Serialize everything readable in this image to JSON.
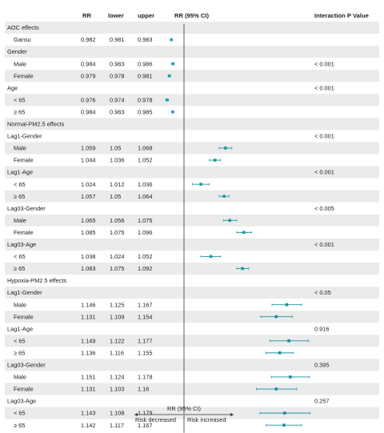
{
  "chart_data": {
    "type": "forest",
    "headers": {
      "rr": "RR",
      "lower": "lower",
      "upper": "upper",
      "ci": "RR (95% CI)",
      "pvalue": "Interaction P Value"
    },
    "xlabel": "RR (95% CI)",
    "xlim": [
      0.98,
      1.2
    ],
    "ticks": [
      {
        "value": 1,
        "label": "1"
      },
      {
        "value": 1.05,
        "label": "1.05"
      },
      {
        "value": 1.1,
        "label": "1.1"
      },
      {
        "value": 1.15,
        "label": "1.15"
      }
    ],
    "reference_line": 1,
    "direction_labels": {
      "left": "Risk decreased",
      "right": "Risk increased"
    },
    "colors": {
      "AOC": "#1aa3b3",
      "Normal": "#1f97a6",
      "Hypoxia": "#1a8fa0",
      "grid_band": "#ebebeb"
    },
    "rows": [
      {
        "type": "section",
        "label": "AOC effects",
        "group": "AOC"
      },
      {
        "type": "data",
        "label": "Gansu",
        "rr": "0.982",
        "lower": "0.981",
        "upper": "0.983",
        "group": "AOC"
      },
      {
        "type": "section",
        "label": "Gender",
        "group": "AOC"
      },
      {
        "type": "data",
        "label": "Male",
        "rr": "0.984",
        "lower": "0.983",
        "upper": "0.986",
        "group": "AOC",
        "p": "< 0.001"
      },
      {
        "type": "data",
        "label": "Female",
        "rr": "0.979",
        "lower": "0.978",
        "upper": "0.981",
        "group": "AOC"
      },
      {
        "type": "section",
        "label": "Age",
        "group": "AOC",
        "p": "< 0.001"
      },
      {
        "type": "data",
        "label": "< 65",
        "rr": "0.976",
        "lower": "0.974",
        "upper": "0.978",
        "group": "AOC"
      },
      {
        "type": "data",
        "label": "≥ 65",
        "rr": "0.984",
        "lower": "0.983",
        "upper": "0.985",
        "group": "AOC"
      },
      {
        "type": "section",
        "label": "Normal-PM2.5 effects",
        "group": "Normal"
      },
      {
        "type": "section",
        "label": "Lag1-Gender",
        "group": "Normal",
        "p": "< 0.001"
      },
      {
        "type": "data",
        "label": "Male",
        "rr": "1.059",
        "lower": "1.05",
        "upper": "1.068",
        "group": "Normal"
      },
      {
        "type": "data",
        "label": "Female",
        "rr": "1.044",
        "lower": "1.036",
        "upper": "1.052",
        "group": "Normal"
      },
      {
        "type": "section",
        "label": "Lag1-Age",
        "group": "Normal",
        "p": "< 0.001"
      },
      {
        "type": "data",
        "label": "< 65",
        "rr": "1.024",
        "lower": "1.012",
        "upper": "1.036",
        "group": "Normal"
      },
      {
        "type": "data",
        "label": "≥ 65",
        "rr": "1.057",
        "lower": "1.05",
        "upper": "1.064",
        "group": "Normal"
      },
      {
        "type": "section",
        "label": "Lag03-Gender",
        "group": "Normal",
        "p": "< 0.005"
      },
      {
        "type": "data",
        "label": "Male",
        "rr": "1.065",
        "lower": "1.056",
        "upper": "1.075",
        "group": "Normal"
      },
      {
        "type": "data",
        "label": "Female",
        "rr": "1.085",
        "lower": "1.075",
        "upper": "1.096",
        "group": "Normal"
      },
      {
        "type": "section",
        "label": "Lag03-Age",
        "group": "Normal",
        "p": "< 0.001"
      },
      {
        "type": "data",
        "label": "< 65",
        "rr": "1.038",
        "lower": "1.024",
        "upper": "1.052",
        "group": "Normal"
      },
      {
        "type": "data",
        "label": "≥ 65",
        "rr": "1.083",
        "lower": "1.075",
        "upper": "1.092",
        "group": "Normal"
      },
      {
        "type": "section",
        "label": "Hypoxia-PM2.5 effects",
        "group": "Hypoxia"
      },
      {
        "type": "section",
        "label": "Lag1-Gender",
        "group": "Hypoxia",
        "p": "< 0.05"
      },
      {
        "type": "data",
        "label": "Male",
        "rr": "1.146",
        "lower": "1.125",
        "upper": "1.167",
        "group": "Hypoxia"
      },
      {
        "type": "data",
        "label": "Female",
        "rr": "1.131",
        "lower": "1.109",
        "upper": "1.154",
        "group": "Hypoxia"
      },
      {
        "type": "section",
        "label": "Lag1-Age",
        "group": "Hypoxia",
        "p": "0.916"
      },
      {
        "type": "data",
        "label": "< 65",
        "rr": "1.149",
        "lower": "1.122",
        "upper": "1.177",
        "group": "Hypoxia"
      },
      {
        "type": "data",
        "label": "≥ 65",
        "rr": "1.136",
        "lower": "1.116",
        "upper": "1.155",
        "group": "Hypoxia"
      },
      {
        "type": "section",
        "label": "Lag03-Gender",
        "group": "Hypoxia",
        "p": "0.395"
      },
      {
        "type": "data",
        "label": "Male",
        "rr": "1.151",
        "lower": "1.124",
        "upper": "1.178",
        "group": "Hypoxia"
      },
      {
        "type": "data",
        "label": "Female",
        "rr": "1.131",
        "lower": "1.103",
        "upper": "1.16",
        "group": "Hypoxia"
      },
      {
        "type": "section",
        "label": "Lag03-Age",
        "group": "Hypoxia",
        "p": "0.257"
      },
      {
        "type": "data",
        "label": "< 65",
        "rr": "1.143",
        "lower": "1.108",
        "upper": "1.179",
        "group": "Hypoxia"
      },
      {
        "type": "data",
        "label": "≥ 65",
        "rr": "1.142",
        "lower": "1.117",
        "upper": "1.167",
        "group": "Hypoxia"
      }
    ]
  }
}
